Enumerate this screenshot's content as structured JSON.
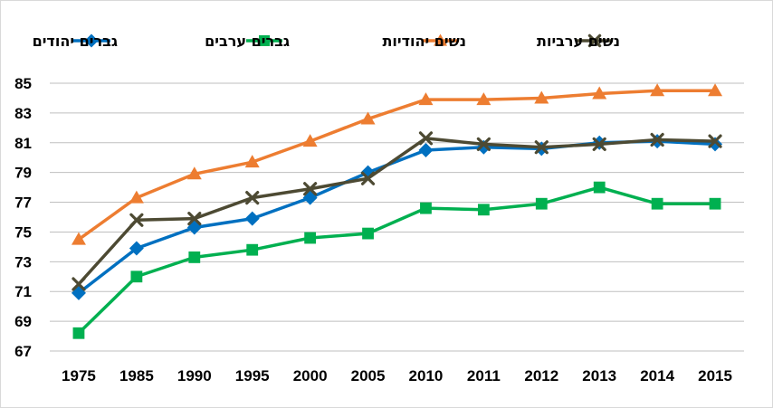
{
  "chart_data": {
    "type": "line",
    "title": "",
    "xlabel": "",
    "ylabel": "",
    "categories": [
      "1975",
      "1985",
      "1990",
      "1995",
      "2000",
      "2005",
      "2010",
      "2011",
      "2012",
      "2013",
      "2014",
      "2015"
    ],
    "ylim": [
      67,
      85
    ],
    "yticks": [
      67,
      69,
      71,
      73,
      75,
      77,
      79,
      81,
      83,
      85
    ],
    "grid": "horizontal",
    "legend_position": "top",
    "series": [
      {
        "name": "גברים יהודים",
        "color": "#0070c0",
        "marker": "diamond",
        "values": [
          70.9,
          73.9,
          75.3,
          75.9,
          77.3,
          79.0,
          80.5,
          80.7,
          80.6,
          81.0,
          81.1,
          80.9
        ]
      },
      {
        "name": "גברים ערבים",
        "color": "#00b050",
        "marker": "square",
        "values": [
          68.2,
          72.0,
          73.3,
          73.8,
          74.6,
          74.9,
          76.6,
          76.5,
          76.9,
          78.0,
          76.9,
          76.9
        ]
      },
      {
        "name": "נשים יהודיות",
        "color": "#ed7d31",
        "marker": "triangle",
        "values": [
          74.5,
          77.3,
          78.9,
          79.7,
          81.1,
          82.6,
          83.9,
          83.9,
          84.0,
          84.3,
          84.5,
          84.5
        ]
      },
      {
        "name": "נשים ערביות",
        "color": "#4d4a33",
        "marker": "x",
        "values": [
          71.5,
          75.8,
          75.9,
          77.3,
          77.9,
          78.6,
          81.3,
          80.9,
          80.7,
          80.9,
          81.2,
          81.1
        ]
      }
    ]
  }
}
